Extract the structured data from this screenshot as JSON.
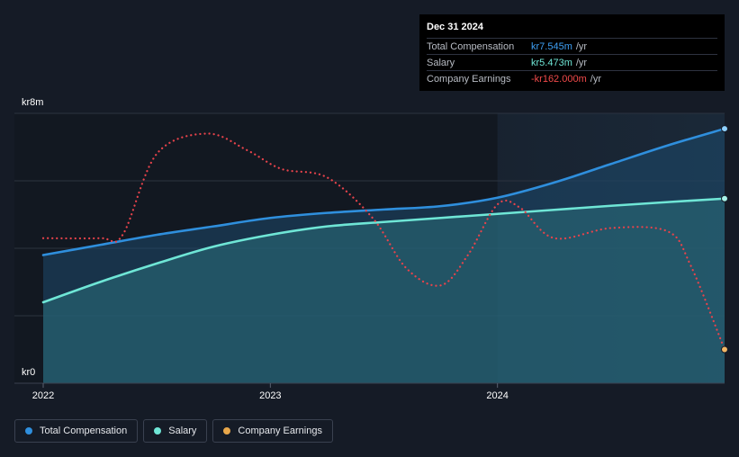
{
  "tooltip": {
    "date": "Dec 31 2024",
    "rows": [
      {
        "label": "Total Compensation",
        "value": "kr7.545m",
        "unit": "/yr",
        "color": "#3ea0f5"
      },
      {
        "label": "Salary",
        "value": "kr5.473m",
        "unit": "/yr",
        "color": "#6fe6d6"
      },
      {
        "label": "Company Earnings",
        "value": "-kr162.000m",
        "unit": "/yr",
        "color": "#f24a4a"
      }
    ]
  },
  "legend": [
    {
      "label": "Total Compensation",
      "color": "#2f8fdd"
    },
    {
      "label": "Salary",
      "color": "#6fe6d6"
    },
    {
      "label": "Company Earnings",
      "color": "#e8a74a"
    }
  ],
  "chart_data": {
    "type": "line",
    "ylabel_top": "kr8m",
    "ylabel_bottom": "kr0",
    "ylim": [
      0,
      8
    ],
    "xlim": [
      2022.0,
      2025.0
    ],
    "x_ticks": [
      {
        "value": 2022.0,
        "label": "2022"
      },
      {
        "value": 2023.0,
        "label": "2023"
      },
      {
        "value": 2024.0,
        "label": "2024"
      }
    ],
    "grid": true,
    "series": [
      {
        "name": "Total Compensation",
        "color": "#2f8fdd",
        "style": "solid",
        "x": [
          2022.0,
          2022.25,
          2022.5,
          2022.75,
          2023.0,
          2023.25,
          2023.5,
          2023.75,
          2024.0,
          2024.25,
          2024.5,
          2024.75,
          2025.0
        ],
        "y": [
          3.8,
          4.1,
          4.4,
          4.65,
          4.9,
          5.05,
          5.15,
          5.25,
          5.5,
          5.95,
          6.5,
          7.05,
          7.545
        ]
      },
      {
        "name": "Salary",
        "color": "#6fe6d6",
        "style": "solid",
        "x": [
          2022.0,
          2022.25,
          2022.5,
          2022.75,
          2023.0,
          2023.25,
          2023.5,
          2023.75,
          2024.0,
          2024.25,
          2024.5,
          2024.75,
          2025.0
        ],
        "y": [
          2.4,
          3.0,
          3.55,
          4.05,
          4.4,
          4.65,
          4.78,
          4.9,
          5.02,
          5.14,
          5.26,
          5.37,
          5.473
        ]
      },
      {
        "name": "Company Earnings",
        "color": "#e8434b",
        "style": "dotted",
        "x": [
          2022.0,
          2022.25,
          2022.35,
          2022.5,
          2022.72,
          2022.9,
          2023.05,
          2023.25,
          2023.45,
          2023.6,
          2023.75,
          2023.87,
          2024.0,
          2024.1,
          2024.25,
          2024.5,
          2024.75,
          2024.85,
          2025.0
        ],
        "y": [
          4.3,
          4.3,
          4.4,
          6.8,
          7.4,
          6.9,
          6.35,
          6.1,
          4.9,
          3.4,
          2.9,
          3.8,
          5.3,
          5.2,
          4.3,
          4.6,
          4.5,
          3.5,
          1.0
        ]
      }
    ]
  }
}
